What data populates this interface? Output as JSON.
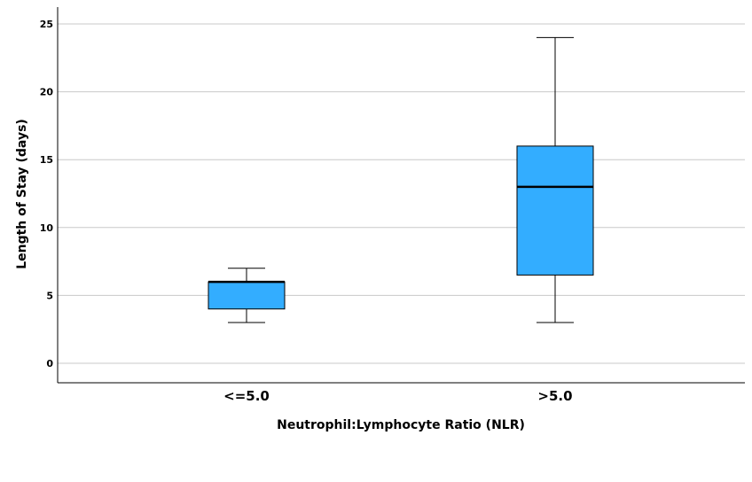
{
  "chart_data": {
    "type": "boxplot",
    "title": "",
    "xlabel": "Neutrophil:Lymphocyte Ratio (NLR)",
    "ylabel": "Length of Stay (days)",
    "ylim": [
      -1.4,
      26.3
    ],
    "yticks": [
      0,
      5,
      10,
      15,
      20,
      25
    ],
    "grid": true,
    "box_color": "#33adff",
    "categories": [
      "<=5.0",
      ">5.0"
    ],
    "boxes": [
      {
        "category": "<=5.0",
        "min": 3,
        "q1": 4,
        "median": 6,
        "q3": 6,
        "max": 7
      },
      {
        "category": ">5.0",
        "min": 3,
        "q1": 6.5,
        "median": 13,
        "q3": 16,
        "max": 24
      }
    ]
  }
}
